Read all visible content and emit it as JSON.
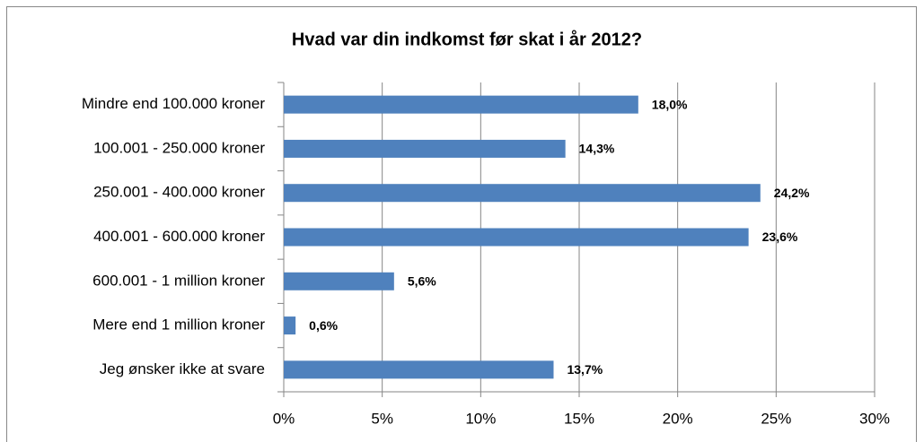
{
  "chart_data": {
    "type": "bar",
    "orientation": "horizontal",
    "title": "Hvad var din indkomst før skat i år 2012?",
    "categories": [
      "Mindre end 100.000 kroner",
      "100.001 - 250.000 kroner",
      "250.001 - 400.000 kroner",
      "400.001 - 600.000 kroner",
      "600.001 - 1 million kroner",
      "Mere end 1 million kroner",
      "Jeg ønsker ikke at svare"
    ],
    "values": [
      18.0,
      14.3,
      24.2,
      23.6,
      5.6,
      0.6,
      13.7
    ],
    "value_labels": [
      "18,0%",
      "14,3%",
      "24,2%",
      "23,6%",
      "5,6%",
      "0,6%",
      "13,7%"
    ],
    "color": "#4f81bd",
    "xlim": [
      0,
      30
    ],
    "xticks": [
      {
        "value": 0,
        "label": "0%"
      },
      {
        "value": 5,
        "label": "5%"
      },
      {
        "value": 10,
        "label": "10%"
      },
      {
        "value": 15,
        "label": "15%"
      },
      {
        "value": 20,
        "label": "20%"
      },
      {
        "value": 25,
        "label": "25%"
      },
      {
        "value": 30,
        "label": "30%"
      }
    ],
    "grid": true
  }
}
